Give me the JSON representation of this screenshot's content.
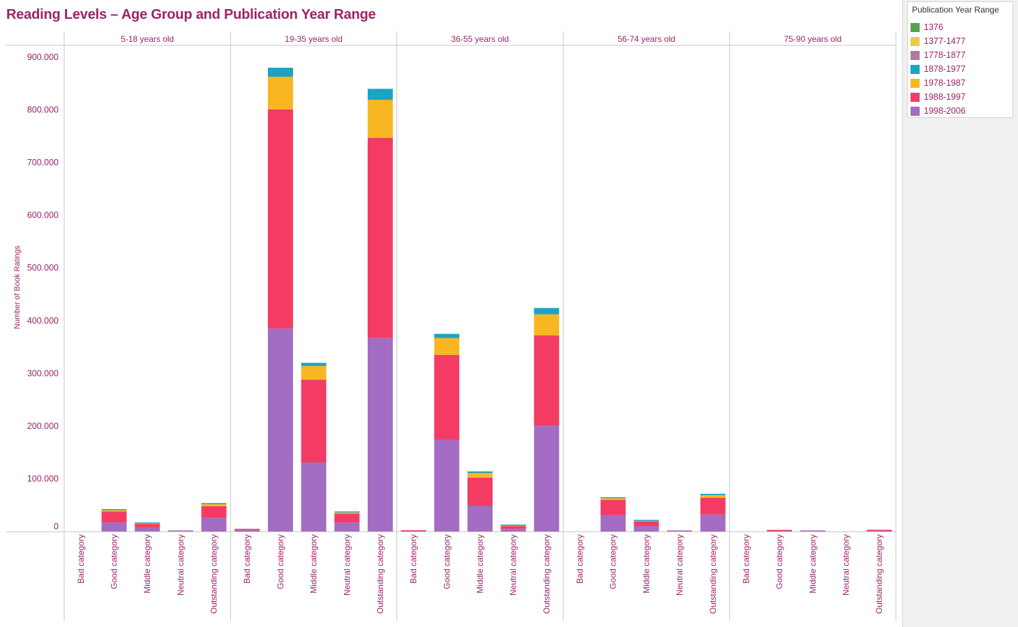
{
  "title": "Reading Levels – Age Group and Publication Year Range",
  "legend": {
    "title": "Publication Year Range",
    "items": [
      {
        "label": "1376",
        "color": "#59a14f"
      },
      {
        "label": "1377-1477",
        "color": "#edc948"
      },
      {
        "label": "1778-1877",
        "color": "#b07aa1"
      },
      {
        "label": "1878-1977",
        "color": "#1ba3c6"
      },
      {
        "label": "1978-1987",
        "color": "#f8b620"
      },
      {
        "label": "1988-1997",
        "color": "#f43b64"
      },
      {
        "label": "1998-2006",
        "color": "#a26dc2"
      }
    ]
  },
  "chart_data": {
    "type": "bar",
    "stacked": true,
    "ylabel": "Number of Book Ratings",
    "ylim": [
      0,
      900000
    ],
    "yticks": [
      "0",
      "100.000",
      "200.000",
      "300.000",
      "400.000",
      "500.000",
      "600.000",
      "700.000",
      "800.000",
      "900.000"
    ],
    "panels": [
      "5-18 years old",
      "19-35 years old",
      "36-55 years old",
      "56-74 years old",
      "75-90 years old"
    ],
    "categories": [
      "Bad category",
      "Good category",
      "Middle category",
      "Neutral category",
      "Outstanding category"
    ],
    "series": [
      {
        "name": "1998-2006",
        "values": [
          [
            0,
            17000,
            7000,
            300,
            26000
          ],
          [
            3000,
            385000,
            131000,
            17000,
            367000
          ],
          [
            300,
            174000,
            49000,
            5000,
            201000
          ],
          [
            0,
            31000,
            10000,
            1500,
            32000
          ],
          [
            0,
            1000,
            500,
            0,
            1200
          ]
        ]
      },
      {
        "name": "1988-1997",
        "values": [
          [
            0,
            21000,
            7000,
            0,
            22000
          ],
          [
            1500,
            416000,
            157000,
            17000,
            380000
          ],
          [
            200,
            161000,
            53000,
            5000,
            171000
          ],
          [
            0,
            29000,
            9000,
            0,
            32000
          ],
          [
            0,
            500,
            0,
            0,
            500
          ]
        ]
      },
      {
        "name": "1978-1987",
        "values": [
          [
            0,
            2500,
            1000,
            0,
            4000
          ],
          [
            0,
            62000,
            26000,
            2000,
            72000
          ],
          [
            0,
            32000,
            9000,
            1000,
            40000
          ],
          [
            0,
            3000,
            1000,
            0,
            5000
          ],
          [
            0,
            0,
            0,
            0,
            0
          ]
        ]
      },
      {
        "name": "1878-1977",
        "values": [
          [
            0,
            500,
            500,
            0,
            1000
          ],
          [
            0,
            17000,
            6000,
            500,
            21000
          ],
          [
            0,
            8000,
            3000,
            500,
            12000
          ],
          [
            0,
            500,
            500,
            0,
            2500
          ],
          [
            0,
            0,
            0,
            0,
            0
          ]
        ]
      },
      {
        "name": "1778-1877",
        "values": [
          [
            0,
            0,
            0,
            0,
            0
          ],
          [
            0,
            0,
            0,
            0,
            0
          ],
          [
            0,
            0,
            0,
            0,
            0
          ],
          [
            0,
            0,
            0,
            0,
            0
          ],
          [
            0,
            0,
            0,
            0,
            0
          ]
        ]
      },
      {
        "name": "1377-1477",
        "values": [
          [
            0,
            0,
            0,
            0,
            0
          ],
          [
            0,
            0,
            0,
            0,
            0
          ],
          [
            0,
            0,
            0,
            0,
            0
          ],
          [
            0,
            0,
            0,
            0,
            0
          ],
          [
            0,
            0,
            0,
            0,
            0
          ]
        ]
      },
      {
        "name": "1376",
        "values": [
          [
            0,
            0,
            0,
            0,
            0
          ],
          [
            0,
            0,
            0,
            0,
            0
          ],
          [
            0,
            0,
            0,
            0,
            0
          ],
          [
            0,
            0,
            0,
            0,
            0
          ],
          [
            0,
            0,
            0,
            0,
            0
          ]
        ]
      }
    ],
    "grid": false,
    "legend_position": "right"
  }
}
